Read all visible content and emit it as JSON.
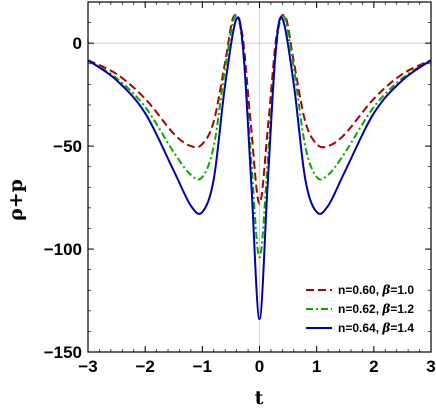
{
  "chart_data": {
    "type": "line",
    "title": "",
    "xlabel": "t",
    "ylabel": "ρ+p",
    "xlim": [
      -3,
      3
    ],
    "ylim": [
      -150,
      20
    ],
    "xticks": [
      -3,
      -2,
      -1,
      0,
      1,
      2,
      3
    ],
    "xtick_labels": [
      "−3",
      "−2",
      "−1",
      "0",
      "1",
      "2",
      "3"
    ],
    "yticks": [
      0,
      -50,
      -100,
      -150
    ],
    "ytick_labels": [
      "0",
      "−50",
      "−100",
      "−150"
    ],
    "grid": false,
    "reference_lines": {
      "x": 0,
      "y": 0
    },
    "legend": {
      "position": "bottom-right"
    },
    "series": [
      {
        "name": "n=0.60, β=1.0",
        "legend_parts": {
          "n": "n=0.60, ",
          "beta_symbol": "β",
          "beta_value": "=1.0"
        },
        "color": "#aa0000",
        "style": "dashed",
        "x": [
          -3,
          -2.5,
          -2,
          -1.5,
          -1.2,
          -1,
          -0.8,
          -0.6,
          -0.45,
          -0.3,
          -0.15,
          0,
          0.15,
          0.3,
          0.45,
          0.6,
          0.8,
          1,
          1.2,
          1.5,
          2,
          2.5,
          3
        ],
        "values": [
          -8.3,
          -15,
          -27,
          -44,
          -50,
          -49,
          -38,
          -9,
          13,
          4,
          -40,
          -78,
          -40,
          4,
          13,
          -9,
          -38,
          -49,
          -50,
          -44,
          -27,
          -15,
          -8.3
        ]
      },
      {
        "name": "n=0.62, β=1.2",
        "legend_parts": {
          "n": "n=0.62, ",
          "beta_symbol": "β",
          "beta_value": "=1.2"
        },
        "color": "#00aa00",
        "style": "dashdot",
        "x": [
          -3,
          -2.5,
          -2,
          -1.5,
          -1.2,
          -1,
          -0.8,
          -0.6,
          -0.43,
          -0.3,
          -0.15,
          0,
          0.15,
          0.3,
          0.43,
          0.6,
          0.8,
          1,
          1.2,
          1.5,
          2,
          2.5,
          3
        ],
        "values": [
          -8.3,
          -17,
          -31,
          -53,
          -64,
          -65,
          -50,
          -12,
          13,
          0,
          -55,
          -104,
          -55,
          0,
          13,
          -12,
          -50,
          -65,
          -64,
          -53,
          -31,
          -17,
          -8.3
        ]
      },
      {
        "name": "n=0.64, β=1.4",
        "legend_parts": {
          "n": "n=0.64, ",
          "beta_symbol": "β",
          "beta_value": "=1.4"
        },
        "color": "#0000aa",
        "style": "solid",
        "x": [
          -3,
          -2.5,
          -2,
          -1.5,
          -1.2,
          -1,
          -0.8,
          -0.6,
          -0.4,
          -0.28,
          -0.14,
          0,
          0.14,
          0.28,
          0.4,
          0.6,
          0.8,
          1,
          1.2,
          1.5,
          2,
          2.5,
          3
        ],
        "values": [
          -8.3,
          -18,
          -34,
          -62,
          -79,
          -82,
          -66,
          -20,
          12,
          -5,
          -70,
          -134,
          -70,
          -5,
          12,
          -20,
          -66,
          -82,
          -79,
          -62,
          -34,
          -18,
          -8.3
        ]
      }
    ]
  }
}
